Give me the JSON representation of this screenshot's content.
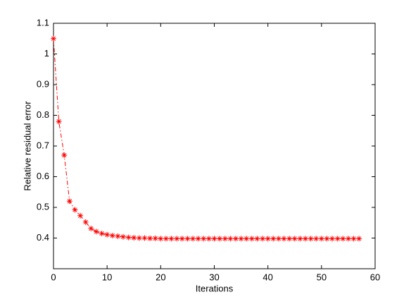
{
  "chart_data": {
    "type": "line",
    "xlabel": "Iterations",
    "ylabel": "Relative residual error",
    "x": [
      0,
      1,
      2,
      3,
      4,
      5,
      6,
      7,
      8,
      9,
      10,
      11,
      12,
      13,
      14,
      15,
      16,
      17,
      18,
      19,
      20,
      21,
      22,
      23,
      24,
      25,
      26,
      27,
      28,
      29,
      30,
      31,
      32,
      33,
      34,
      35,
      36,
      37,
      38,
      39,
      40,
      41,
      42,
      43,
      44,
      45,
      46,
      47,
      48,
      49,
      50,
      51,
      52,
      53,
      54,
      55,
      56,
      57
    ],
    "series": [
      {
        "color": "#ff0000",
        "values": [
          1.05,
          0.78,
          0.67,
          0.52,
          0.492,
          0.473,
          0.452,
          0.431,
          0.421,
          0.415,
          0.411,
          0.408,
          0.406,
          0.404,
          0.402,
          0.401,
          0.4,
          0.4,
          0.399,
          0.399,
          0.398,
          0.398,
          0.398,
          0.398,
          0.398,
          0.398,
          0.398,
          0.398,
          0.398,
          0.398,
          0.398,
          0.398,
          0.398,
          0.398,
          0.398,
          0.398,
          0.398,
          0.398,
          0.398,
          0.398,
          0.398,
          0.398,
          0.398,
          0.398,
          0.398,
          0.398,
          0.398,
          0.398,
          0.398,
          0.398,
          0.398,
          0.398,
          0.398,
          0.398,
          0.398,
          0.398,
          0.398,
          0.398
        ]
      }
    ],
    "xlim": [
      0,
      60
    ],
    "xticks": [
      0,
      10,
      20,
      30,
      40,
      50,
      60
    ],
    "ylim": [
      0.3,
      1.1
    ],
    "yticks": [
      0.4,
      0.5,
      0.6,
      0.7,
      0.8,
      0.9,
      1,
      1.1
    ]
  }
}
